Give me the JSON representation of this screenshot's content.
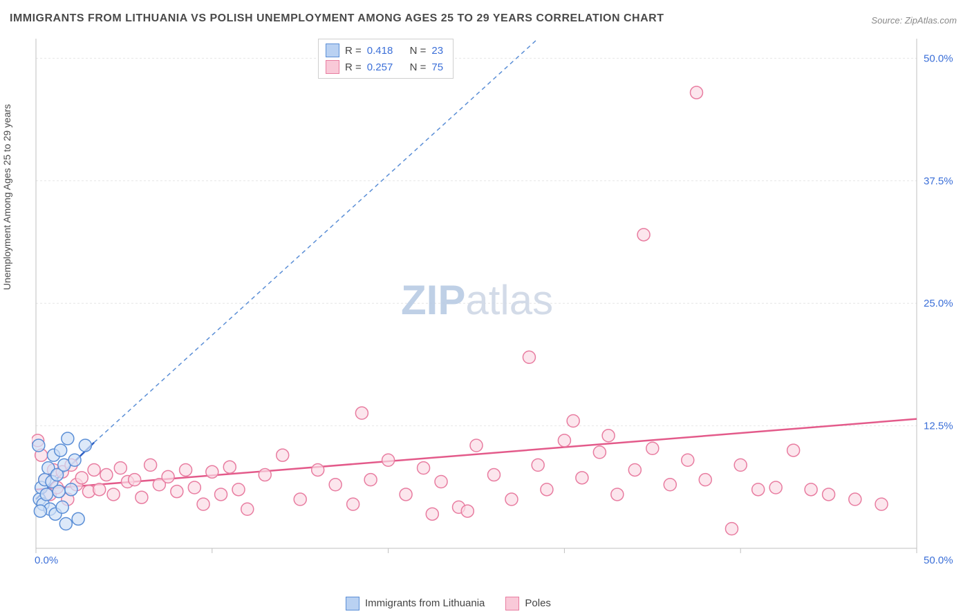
{
  "title": "IMMIGRANTS FROM LITHUANIA VS POLISH UNEMPLOYMENT AMONG AGES 25 TO 29 YEARS CORRELATION CHART",
  "source_label": "Source:",
  "source_value": "ZipAtlas.com",
  "ylabel": "Unemployment Among Ages 25 to 29 years",
  "watermark_a": "ZIP",
  "watermark_b": "atlas",
  "chart": {
    "type": "scatter",
    "xlim": [
      0,
      50
    ],
    "ylim": [
      0,
      52
    ],
    "x_origin_label": "0.0%",
    "x_max_label": "50.0%",
    "y_tick_values": [
      12.5,
      25.0,
      37.5,
      50.0
    ],
    "y_tick_labels": [
      "12.5%",
      "25.0%",
      "37.5%",
      "50.0%"
    ],
    "x_tick_values": [
      0,
      10,
      20,
      30,
      40,
      50
    ],
    "grid_color": "#e6e6e6",
    "axis_color": "#bfbfbf",
    "tick_label_color": "#3b6fd8",
    "tick_label_fontsize": 15,
    "background_color": "#ffffff",
    "marker_radius": 9,
    "marker_stroke_width": 1.5,
    "series": {
      "lithuania": {
        "label": "Immigrants from Lithuania",
        "fill": "#cfe0f7",
        "stroke": "#5a8ed6",
        "swatch_fill": "#b9d1f2",
        "swatch_stroke": "#5a8ed6",
        "R": "0.418",
        "N": "23",
        "trend_solid": {
          "x1": 0,
          "y1": 5.0,
          "x2": 3.3,
          "y2": 10.8,
          "color": "#2d5fc4",
          "width": 2.5
        },
        "trend_dashed": {
          "x1": 3.3,
          "y1": 10.8,
          "x2": 28.5,
          "y2": 52.0,
          "color": "#5a8ed6",
          "width": 1.5,
          "dash": "6,5"
        },
        "points": [
          [
            0.2,
            5.0
          ],
          [
            0.3,
            6.2
          ],
          [
            0.4,
            4.5
          ],
          [
            0.5,
            7.0
          ],
          [
            0.6,
            5.5
          ],
          [
            0.7,
            8.2
          ],
          [
            0.8,
            4.0
          ],
          [
            0.9,
            6.8
          ],
          [
            1.0,
            9.5
          ],
          [
            1.1,
            3.5
          ],
          [
            1.2,
            7.5
          ],
          [
            1.3,
            5.8
          ],
          [
            1.4,
            10.0
          ],
          [
            1.5,
            4.2
          ],
          [
            1.6,
            8.5
          ],
          [
            1.8,
            11.2
          ],
          [
            2.0,
            6.0
          ],
          [
            2.2,
            9.0
          ],
          [
            2.4,
            3.0
          ],
          [
            1.7,
            2.5
          ],
          [
            0.15,
            10.5
          ],
          [
            0.25,
            3.8
          ],
          [
            2.8,
            10.5
          ]
        ]
      },
      "poles": {
        "label": "Poles",
        "fill": "#fbdce5",
        "stroke": "#e87ca0",
        "swatch_fill": "#f9c9d8",
        "swatch_stroke": "#e87ca0",
        "R": "0.257",
        "N": "75",
        "trend_solid": {
          "x1": 0,
          "y1": 6.0,
          "x2": 50,
          "y2": 13.2,
          "color": "#e35a8a",
          "width": 2.5
        },
        "points": [
          [
            0.3,
            9.5
          ],
          [
            0.5,
            7.0
          ],
          [
            0.8,
            5.5
          ],
          [
            1.0,
            8.0
          ],
          [
            1.2,
            6.2
          ],
          [
            1.5,
            7.8
          ],
          [
            1.8,
            5.0
          ],
          [
            2.0,
            8.5
          ],
          [
            2.3,
            6.5
          ],
          [
            2.6,
            7.2
          ],
          [
            3.0,
            5.8
          ],
          [
            3.3,
            8.0
          ],
          [
            3.6,
            6.0
          ],
          [
            4.0,
            7.5
          ],
          [
            4.4,
            5.5
          ],
          [
            4.8,
            8.2
          ],
          [
            5.2,
            6.8
          ],
          [
            5.6,
            7.0
          ],
          [
            6.0,
            5.2
          ],
          [
            6.5,
            8.5
          ],
          [
            7.0,
            6.5
          ],
          [
            7.5,
            7.3
          ],
          [
            8.0,
            5.8
          ],
          [
            8.5,
            8.0
          ],
          [
            9.0,
            6.2
          ],
          [
            9.5,
            4.5
          ],
          [
            10.0,
            7.8
          ],
          [
            10.5,
            5.5
          ],
          [
            11.0,
            8.3
          ],
          [
            11.5,
            6.0
          ],
          [
            12.0,
            4.0
          ],
          [
            13.0,
            7.5
          ],
          [
            14.0,
            9.5
          ],
          [
            15.0,
            5.0
          ],
          [
            16.0,
            8.0
          ],
          [
            17.0,
            6.5
          ],
          [
            18.0,
            4.5
          ],
          [
            18.5,
            13.8
          ],
          [
            19.0,
            7.0
          ],
          [
            20.0,
            9.0
          ],
          [
            21.0,
            5.5
          ],
          [
            22.0,
            8.2
          ],
          [
            22.5,
            3.5
          ],
          [
            23.0,
            6.8
          ],
          [
            24.0,
            4.2
          ],
          [
            24.5,
            3.8
          ],
          [
            25.0,
            10.5
          ],
          [
            26.0,
            7.5
          ],
          [
            27.0,
            5.0
          ],
          [
            28.0,
            19.5
          ],
          [
            28.5,
            8.5
          ],
          [
            29.0,
            6.0
          ],
          [
            30.0,
            11.0
          ],
          [
            30.5,
            13.0
          ],
          [
            31.0,
            7.2
          ],
          [
            32.0,
            9.8
          ],
          [
            32.5,
            11.5
          ],
          [
            33.0,
            5.5
          ],
          [
            34.0,
            8.0
          ],
          [
            35.0,
            10.2
          ],
          [
            36.0,
            6.5
          ],
          [
            37.0,
            9.0
          ],
          [
            38.0,
            7.0
          ],
          [
            39.5,
            2.0
          ],
          [
            40.0,
            8.5
          ],
          [
            41.0,
            6.0
          ],
          [
            42.0,
            6.2
          ],
          [
            43.0,
            10.0
          ],
          [
            44.0,
            6.0
          ],
          [
            45.0,
            5.5
          ],
          [
            46.5,
            5.0
          ],
          [
            48.0,
            4.5
          ],
          [
            34.5,
            32.0
          ],
          [
            37.5,
            46.5
          ],
          [
            0.1,
            11.0
          ]
        ]
      }
    }
  },
  "legend_top_prefix_R": "R  =",
  "legend_top_prefix_N": "N  ="
}
